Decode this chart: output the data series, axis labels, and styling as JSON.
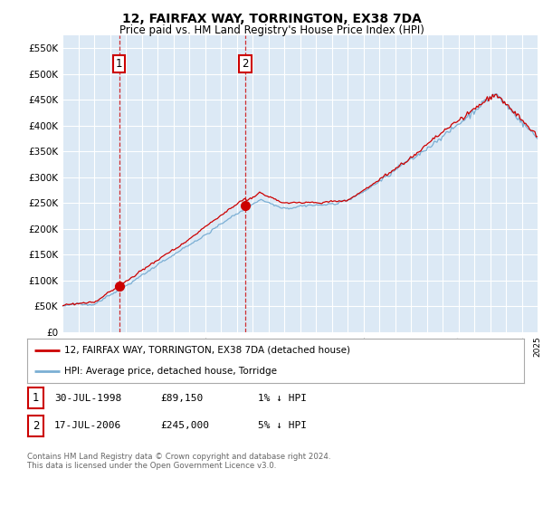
{
  "title": "12, FAIRFAX WAY, TORRINGTON, EX38 7DA",
  "subtitle": "Price paid vs. HM Land Registry's House Price Index (HPI)",
  "background_color": "#ffffff",
  "plot_bg_color": "#dce9f5",
  "grid_color": "#ffffff",
  "line_color_hpi": "#7bafd4",
  "line_color_price": "#cc0000",
  "ylim": [
    0,
    575000
  ],
  "yticks": [
    0,
    50000,
    100000,
    150000,
    200000,
    250000,
    300000,
    350000,
    400000,
    450000,
    500000,
    550000
  ],
  "ytick_labels": [
    "£0",
    "£50K",
    "£100K",
    "£150K",
    "£200K",
    "£250K",
    "£300K",
    "£350K",
    "£400K",
    "£450K",
    "£500K",
    "£550K"
  ],
  "xmin": 1995,
  "xmax": 2025,
  "sale1_date_x": 1998.58,
  "sale1_price": 89150,
  "sale1_label": "1",
  "sale2_date_x": 2006.54,
  "sale2_price": 245000,
  "sale2_label": "2",
  "legend_label_price": "12, FAIRFAX WAY, TORRINGTON, EX38 7DA (detached house)",
  "legend_label_hpi": "HPI: Average price, detached house, Torridge",
  "table_rows": [
    [
      "1",
      "30-JUL-1998",
      "£89,150",
      "1% ↓ HPI"
    ],
    [
      "2",
      "17-JUL-2006",
      "£245,000",
      "5% ↓ HPI"
    ]
  ],
  "footnote": "Contains HM Land Registry data © Crown copyright and database right 2024.\nThis data is licensed under the Open Government Licence v3.0."
}
